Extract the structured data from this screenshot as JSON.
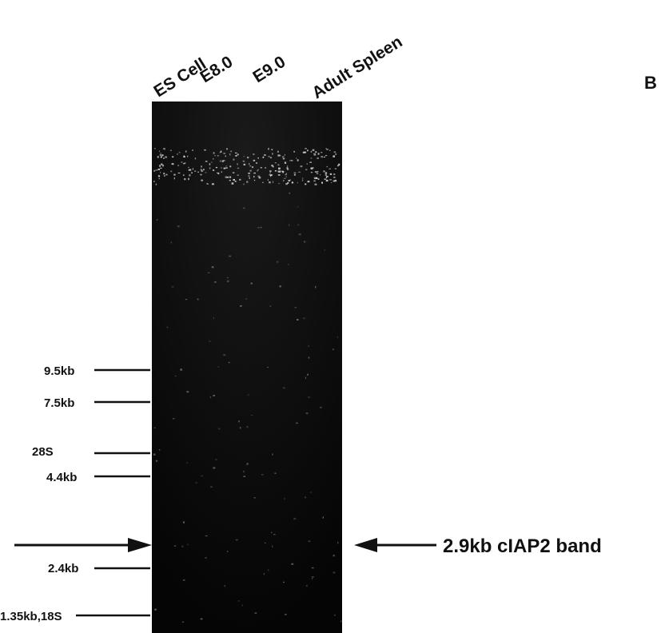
{
  "panel_letter": "B",
  "lanes": [
    "ES Cell",
    "E8.0",
    "E9.0",
    "Adult Spleen"
  ],
  "markers": [
    "9.5kb",
    "7.5kb",
    "28S",
    "4.4kb",
    "2.4kb",
    "1.35kb,18S"
  ],
  "band_label": "2.9kb cIAP2 band"
}
